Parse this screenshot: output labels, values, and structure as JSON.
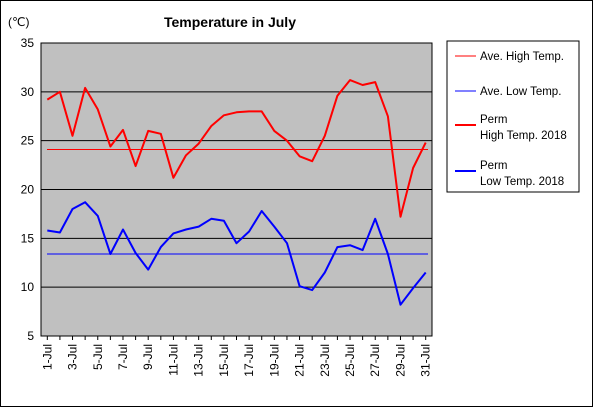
{
  "chart_data": {
    "type": "line",
    "title": "Temperature in July",
    "unit_label": "(℃)",
    "ylim": [
      5,
      35
    ],
    "yticks": [
      "5",
      "10",
      "15",
      "20",
      "25",
      "30",
      "35"
    ],
    "grid": "horizontal",
    "plot_background": "#c0c0c0",
    "x": [
      "1-Jul",
      "2-Jul",
      "3-Jul",
      "4-Jul",
      "5-Jul",
      "6-Jul",
      "7-Jul",
      "8-Jul",
      "9-Jul",
      "10-Jul",
      "11-Jul",
      "12-Jul",
      "13-Jul",
      "14-Jul",
      "15-Jul",
      "16-Jul",
      "17-Jul",
      "18-Jul",
      "19-Jul",
      "20-Jul",
      "21-Jul",
      "22-Jul",
      "23-Jul",
      "24-Jul",
      "25-Jul",
      "26-Jul",
      "27-Jul",
      "28-Jul",
      "29-Jul",
      "30-Jul",
      "31-Jul"
    ],
    "xtick_labels": [
      "1-Jul",
      "3-Jul",
      "5-Jul",
      "7-Jul",
      "9-Jul",
      "11-Jul",
      "13-Jul",
      "15-Jul",
      "17-Jul",
      "19-Jul",
      "21-Jul",
      "23-Jul",
      "25-Jul",
      "27-Jul",
      "29-Jul",
      "31-Jul"
    ],
    "legend_position": "right",
    "series": [
      {
        "name": "Ave. High Temp.",
        "style": "thin",
        "color": "#ff0000",
        "values": [
          24.1,
          24.1,
          24.1,
          24.1,
          24.1,
          24.1,
          24.1,
          24.1,
          24.1,
          24.1,
          24.1,
          24.1,
          24.1,
          24.1,
          24.1,
          24.1,
          24.1,
          24.1,
          24.1,
          24.1,
          24.1,
          24.1,
          24.1,
          24.1,
          24.1,
          24.1,
          24.1,
          24.1,
          24.1,
          24.1,
          24.1
        ]
      },
      {
        "name": "Ave. Low Temp.",
        "style": "thin",
        "color": "#0000ff",
        "values": [
          13.4,
          13.4,
          13.4,
          13.4,
          13.4,
          13.4,
          13.4,
          13.4,
          13.4,
          13.4,
          13.4,
          13.4,
          13.4,
          13.4,
          13.4,
          13.4,
          13.4,
          13.4,
          13.4,
          13.4,
          13.4,
          13.4,
          13.4,
          13.4,
          13.4,
          13.4,
          13.4,
          13.4,
          13.4,
          13.4,
          13.4
        ]
      },
      {
        "name": "Perm High Temp. 2018",
        "legend_lines": [
          "Perm",
          "High Temp. 2018"
        ],
        "style": "thick",
        "color": "#ff0000",
        "values": [
          29.2,
          30.0,
          25.5,
          30.4,
          28.2,
          24.4,
          26.1,
          22.4,
          26.0,
          25.7,
          21.2,
          23.5,
          24.7,
          26.5,
          27.6,
          27.9,
          28.0,
          28.0,
          26.0,
          25.0,
          23.4,
          22.9,
          25.5,
          29.6,
          31.2,
          30.7,
          31.0,
          27.5,
          17.2,
          22.2,
          24.8
        ]
      },
      {
        "name": "Perm Low Temp. 2018",
        "legend_lines": [
          "Perm",
          "Low Temp. 2018"
        ],
        "style": "thick",
        "color": "#0000ff",
        "values": [
          15.8,
          15.6,
          18.0,
          18.7,
          17.3,
          13.4,
          15.9,
          13.5,
          11.8,
          14.1,
          15.5,
          15.9,
          16.2,
          17.0,
          16.8,
          14.5,
          15.7,
          17.8,
          16.2,
          14.5,
          10.1,
          9.7,
          11.5,
          14.1,
          14.3,
          13.8,
          17.0,
          13.4,
          8.2,
          9.9,
          11.5
        ]
      }
    ]
  }
}
